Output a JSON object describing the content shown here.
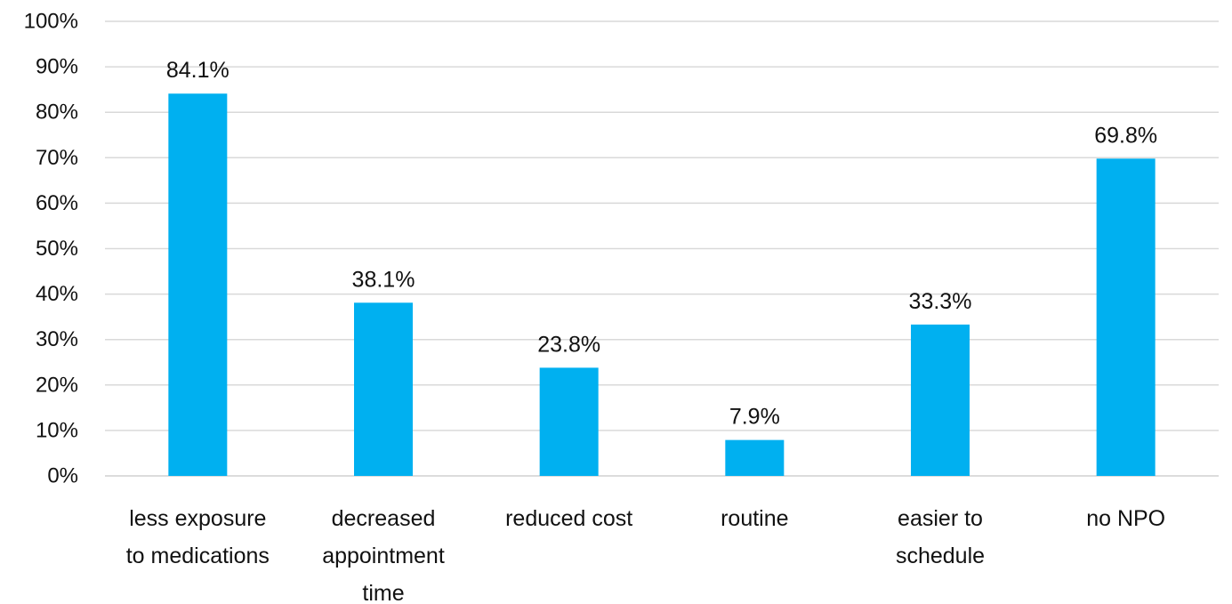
{
  "chart_data": {
    "type": "bar",
    "categories": [
      [
        "less exposure",
        "to medications"
      ],
      [
        "decreased",
        "appointment",
        "time"
      ],
      [
        "reduced cost"
      ],
      [
        "routine"
      ],
      [
        "easier to",
        "schedule"
      ],
      [
        "no NPO"
      ]
    ],
    "values": [
      84.1,
      38.1,
      23.8,
      7.9,
      33.3,
      69.8
    ],
    "value_labels": [
      "84.1%",
      "38.1%",
      "23.8%",
      "7.9%",
      "33.3%",
      "69.8%"
    ],
    "y_ticks": [
      "0%",
      "10%",
      "20%",
      "30%",
      "40%",
      "50%",
      "60%",
      "70%",
      "80%",
      "90%",
      "100%"
    ],
    "ylim": [
      0,
      100
    ],
    "grid": true,
    "bar_color": "#00b0f0",
    "title": "",
    "xlabel": "",
    "ylabel": ""
  }
}
